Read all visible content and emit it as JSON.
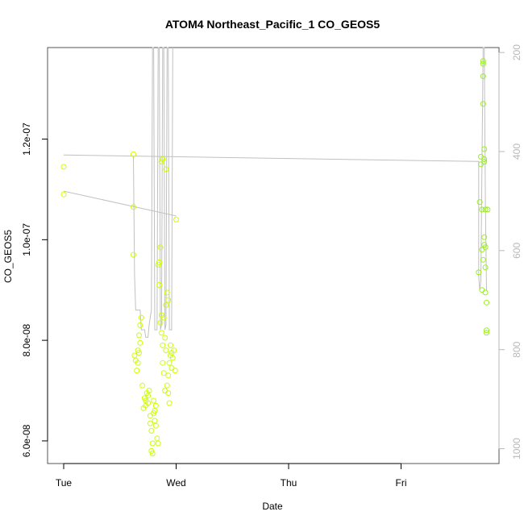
{
  "chart_data": {
    "type": "scatter",
    "title": "ATOM4 Northeast_Pacific_1 CO_GEOS5",
    "xlabel": "Date",
    "ylabel": "CO_GEOS5",
    "x_ticks": [
      "Tue",
      "Wed",
      "Thu",
      "Fri"
    ],
    "xlim": [
      0.0,
      3.88
    ],
    "ylim": [
      5.55e-08,
      1.382e-07
    ],
    "y_ticks": [
      6e-08,
      8e-08,
      1e-07,
      1.2e-07
    ],
    "y_tick_labels": [
      "6.0e-08",
      "8.0e-08",
      "1.0e-07",
      "1.2e-07"
    ],
    "y2_label": "",
    "y2_lim": [
      1030,
      190
    ],
    "y2_ticks": [
      200,
      400,
      600,
      800,
      1000
    ],
    "y2_tick_labels": [
      "200",
      "400",
      "600",
      "800",
      "1000"
    ],
    "grid": false,
    "legend": "none",
    "colors": {
      "co_points": "#ccff00",
      "co_points_late": "#99ee22",
      "altitude_line": "#c0c0c0",
      "right_axis": "#b8b8b8"
    },
    "series": [
      {
        "kind": "points",
        "x_unit": "days since Tue 00:00",
        "points": [
          [
            0.0,
            1.145e-07
          ],
          [
            0.0,
            1.09e-07
          ],
          [
            0.62,
            1.17e-07
          ],
          [
            0.62,
            1.065e-07
          ],
          [
            0.62,
            9.7e-08
          ],
          [
            0.63,
            7.7e-08
          ],
          [
            0.64,
            7.6e-08
          ],
          [
            0.65,
            7.4e-08
          ],
          [
            0.66,
            7.8e-08
          ],
          [
            0.67,
            8.1e-08
          ],
          [
            0.68,
            8.3e-08
          ],
          [
            0.69,
            8.45e-08
          ],
          [
            0.7,
            7.1e-08
          ],
          [
            0.71,
            6.65e-08
          ],
          [
            0.72,
            6.85e-08
          ],
          [
            0.73,
            6.7e-08
          ],
          [
            0.74,
            6.95e-08
          ],
          [
            0.75,
            6.9e-08
          ],
          [
            0.76,
            7e-08
          ],
          [
            0.77,
            6.5e-08
          ],
          [
            0.77,
            6.35e-08
          ],
          [
            0.78,
            6.2e-08
          ],
          [
            0.78,
            5.8e-08
          ],
          [
            0.79,
            5.75e-08
          ],
          [
            0.79,
            5.95e-08
          ],
          [
            0.8,
            6.8e-08
          ],
          [
            0.81,
            6.6e-08
          ],
          [
            0.82,
            6.3e-08
          ],
          [
            0.83,
            6.05e-08
          ],
          [
            0.84,
            5.95e-08
          ],
          [
            0.67,
            7.75e-08
          ],
          [
            0.68,
            7.95e-08
          ],
          [
            0.66,
            7.55e-08
          ],
          [
            0.73,
            6.8e-08
          ],
          [
            0.75,
            6.75e-08
          ],
          [
            0.8,
            6.55e-08
          ],
          [
            0.81,
            6.4e-08
          ],
          [
            0.82,
            6.7e-08
          ],
          [
            0.84,
            9.5e-08
          ],
          [
            0.85,
            9.1e-08
          ],
          [
            0.86,
            8.35e-08
          ],
          [
            0.87,
            8.5e-08
          ],
          [
            0.87,
            8.15e-08
          ],
          [
            0.88,
            7.9e-08
          ],
          [
            0.88,
            7.55e-08
          ],
          [
            0.89,
            7.35e-08
          ],
          [
            0.9,
            7e-08
          ],
          [
            0.91,
            7.8e-08
          ],
          [
            0.91,
            8.7e-08
          ],
          [
            0.92,
            8.95e-08
          ],
          [
            0.93,
            7.3e-08
          ],
          [
            0.93,
            8.8e-08
          ],
          [
            0.94,
            7.55e-08
          ],
          [
            0.95,
            7.9e-08
          ],
          [
            0.95,
            7.7e-08
          ],
          [
            0.96,
            7.45e-08
          ],
          [
            0.96,
            7.75e-08
          ],
          [
            0.97,
            7.65e-08
          ],
          [
            0.98,
            7.8e-08
          ],
          [
            0.99,
            7.4e-08
          ],
          [
            0.87,
            1.155e-07
          ],
          [
            0.88,
            1.16e-07
          ],
          [
            0.91,
            1.14e-07
          ],
          [
            0.86,
            9.85e-08
          ],
          [
            0.85,
            9.55e-08
          ],
          [
            0.89,
            8.45e-08
          ],
          [
            0.9,
            8.05e-08
          ],
          [
            0.92,
            7.1e-08
          ],
          [
            0.93,
            6.95e-08
          ],
          [
            0.94,
            6.75e-08
          ],
          [
            1.0,
            1.04e-07
          ],
          [
            3.69,
            9.35e-08
          ],
          [
            3.7,
            1.075e-07
          ],
          [
            3.71,
            1.15e-07
          ],
          [
            3.71,
            1.165e-07
          ],
          [
            3.72,
            1.06e-07
          ],
          [
            3.72,
            9.8e-08
          ],
          [
            3.73,
            1.355e-07
          ],
          [
            3.73,
            1.35e-07
          ],
          [
            3.73,
            1.325e-07
          ],
          [
            3.74,
            1.155e-07
          ],
          [
            3.74,
            1.16e-07
          ],
          [
            3.73,
            1.27e-07
          ],
          [
            3.74,
            1.18e-07
          ],
          [
            3.72,
            9e-08
          ],
          [
            3.73,
            9.6e-08
          ],
          [
            3.74,
            9.9e-08
          ],
          [
            3.74,
            1.005e-07
          ],
          [
            3.75,
            9.85e-08
          ],
          [
            3.75,
            9.45e-08
          ],
          [
            3.75,
            8.95e-08
          ],
          [
            3.76,
            8.75e-08
          ],
          [
            3.76,
            8.2e-08
          ],
          [
            3.76,
            8.15e-08
          ],
          [
            3.77,
            1.06e-07
          ],
          [
            3.75,
            1.06e-07
          ]
        ]
      },
      {
        "kind": "line",
        "axis": "right",
        "name": "",
        "x_unit": "days since Tue 00:00",
        "polyline": [
          [
            0.0,
            407
          ],
          [
            3.69,
            420
          ],
          [
            3.69,
            650
          ],
          [
            3.7,
            680
          ],
          [
            3.71,
            660
          ],
          [
            3.72,
            420
          ],
          [
            3.73,
            180
          ],
          [
            3.74,
            180
          ],
          [
            3.75,
            500
          ],
          [
            3.76,
            680
          ]
        ],
        "segments": [
          [
            [
              0.0,
              480
            ],
            [
              1.0,
              530
            ]
          ],
          [
            [
              0.62,
              410
            ],
            [
              0.63,
              650
            ],
            [
              0.64,
              720
            ],
            [
              0.68,
              720
            ],
            [
              0.69,
              760
            ],
            [
              0.72,
              760
            ],
            [
              0.73,
              775
            ],
            [
              0.75,
              775
            ],
            [
              0.76,
              750
            ],
            [
              0.78,
              720
            ],
            [
              0.79,
              180
            ],
            [
              0.8,
              180
            ],
            [
              0.81,
              760
            ],
            [
              0.83,
              760
            ],
            [
              0.84,
              180
            ],
            [
              0.85,
              180
            ],
            [
              0.86,
              760
            ],
            [
              0.87,
              750
            ],
            [
              0.88,
              180
            ],
            [
              0.89,
              180
            ],
            [
              0.9,
              760
            ],
            [
              0.91,
              750
            ],
            [
              0.92,
              180
            ],
            [
              0.93,
              180
            ],
            [
              0.94,
              760
            ],
            [
              0.96,
              760
            ],
            [
              0.97,
              180
            ]
          ]
        ]
      }
    ]
  }
}
